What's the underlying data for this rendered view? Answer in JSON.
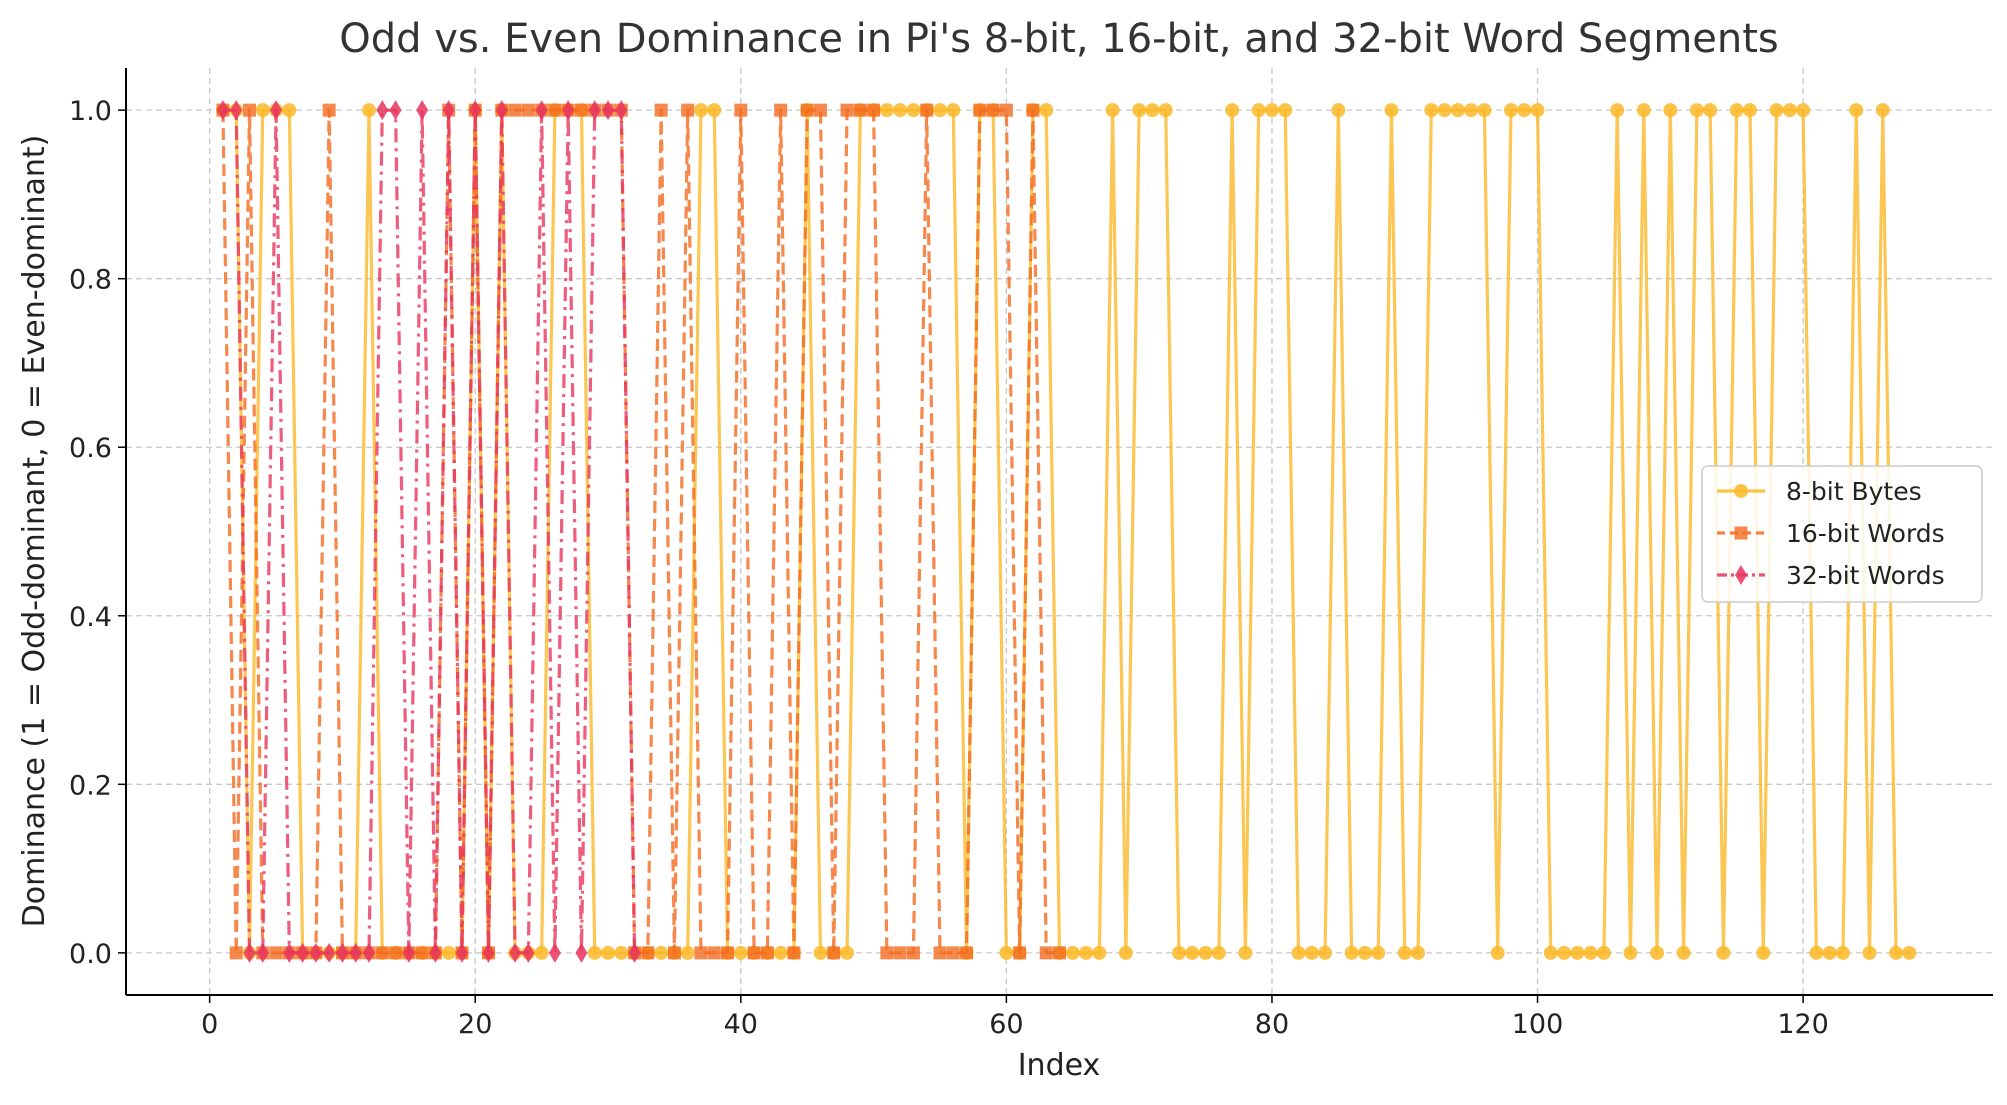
{
  "chart_data": {
    "type": "line",
    "title": "Odd vs. Even Dominance in Pi's 8-bit, 16-bit, and 32-bit Word Segments",
    "xlabel": "Index",
    "ylabel": "Dominance (1 = Odd-dominant, 0 = Even-dominant)",
    "xlim": [
      -6.3,
      134.3
    ],
    "ylim": [
      -0.05,
      1.05
    ],
    "x_ticks": [
      0,
      20,
      40,
      60,
      80,
      100,
      120
    ],
    "y_ticks": [
      0.0,
      0.2,
      0.4,
      0.6,
      0.8,
      1.0
    ],
    "x_tick_labels": [
      "0",
      "20",
      "40",
      "60",
      "80",
      "100",
      "120"
    ],
    "y_tick_labels": [
      "0.0",
      "0.2",
      "0.4",
      "0.6",
      "0.8",
      "1.0"
    ],
    "grid": true,
    "legend_position": "center-right",
    "series": [
      {
        "name": "8-bit Bytes",
        "color": "#FBB829",
        "marker": "circle",
        "linestyle": "solid",
        "x_start": 1,
        "values": [
          1,
          1,
          0,
          1,
          1,
          1,
          0,
          0,
          0,
          0,
          0,
          1,
          0,
          0,
          0,
          0,
          0,
          0,
          0,
          1,
          0,
          1,
          0,
          0,
          0,
          1,
          1,
          1,
          0,
          0,
          0,
          0,
          0,
          0,
          0,
          0,
          1,
          1,
          0,
          0,
          0,
          0,
          0,
          0,
          1,
          0,
          0,
          0,
          1,
          1,
          1,
          1,
          1,
          1,
          1,
          1,
          0,
          1,
          1,
          0,
          0,
          1,
          1,
          0,
          0,
          0,
          0,
          1,
          0,
          1,
          1,
          1,
          0,
          0,
          0,
          0,
          1,
          0,
          1,
          1,
          1,
          0,
          0,
          0,
          1,
          0,
          0,
          0,
          1,
          0,
          0,
          1,
          1,
          1,
          1,
          1,
          0,
          1,
          1,
          1,
          0,
          0,
          0,
          0,
          0,
          1,
          0,
          1,
          0,
          1,
          0,
          1,
          1,
          0,
          1,
          1,
          0,
          1,
          1,
          1,
          0,
          0,
          0,
          1,
          0,
          1,
          0,
          0
        ]
      },
      {
        "name": "16-bit Words",
        "color": "#F26B21",
        "marker": "square",
        "linestyle": "dashed",
        "x_start": 1,
        "values": [
          1,
          0,
          1,
          0,
          0,
          0,
          0,
          0,
          1,
          0,
          0,
          0,
          0,
          0,
          0,
          0,
          0,
          1,
          0,
          1,
          0,
          1,
          1,
          1,
          1,
          1,
          1,
          1,
          1,
          1,
          1,
          0,
          0,
          1,
          0,
          1,
          0,
          0,
          0,
          1,
          0,
          0,
          1,
          0,
          1,
          1,
          0,
          1,
          1,
          1,
          0,
          0,
          0,
          1,
          0,
          0,
          0,
          1,
          1,
          1,
          0,
          1,
          0,
          0
        ]
      },
      {
        "name": "32-bit Words",
        "color": "#E8355E",
        "marker": "diamond",
        "linestyle": "dashdot",
        "x_start": 1,
        "values": [
          1,
          1,
          0,
          0,
          1,
          0,
          0,
          0,
          0,
          0,
          0,
          0,
          1,
          1,
          0,
          1,
          0,
          1,
          0,
          1,
          0,
          1,
          0,
          0,
          1,
          0,
          1,
          0,
          1,
          1,
          1,
          0
        ]
      }
    ]
  }
}
